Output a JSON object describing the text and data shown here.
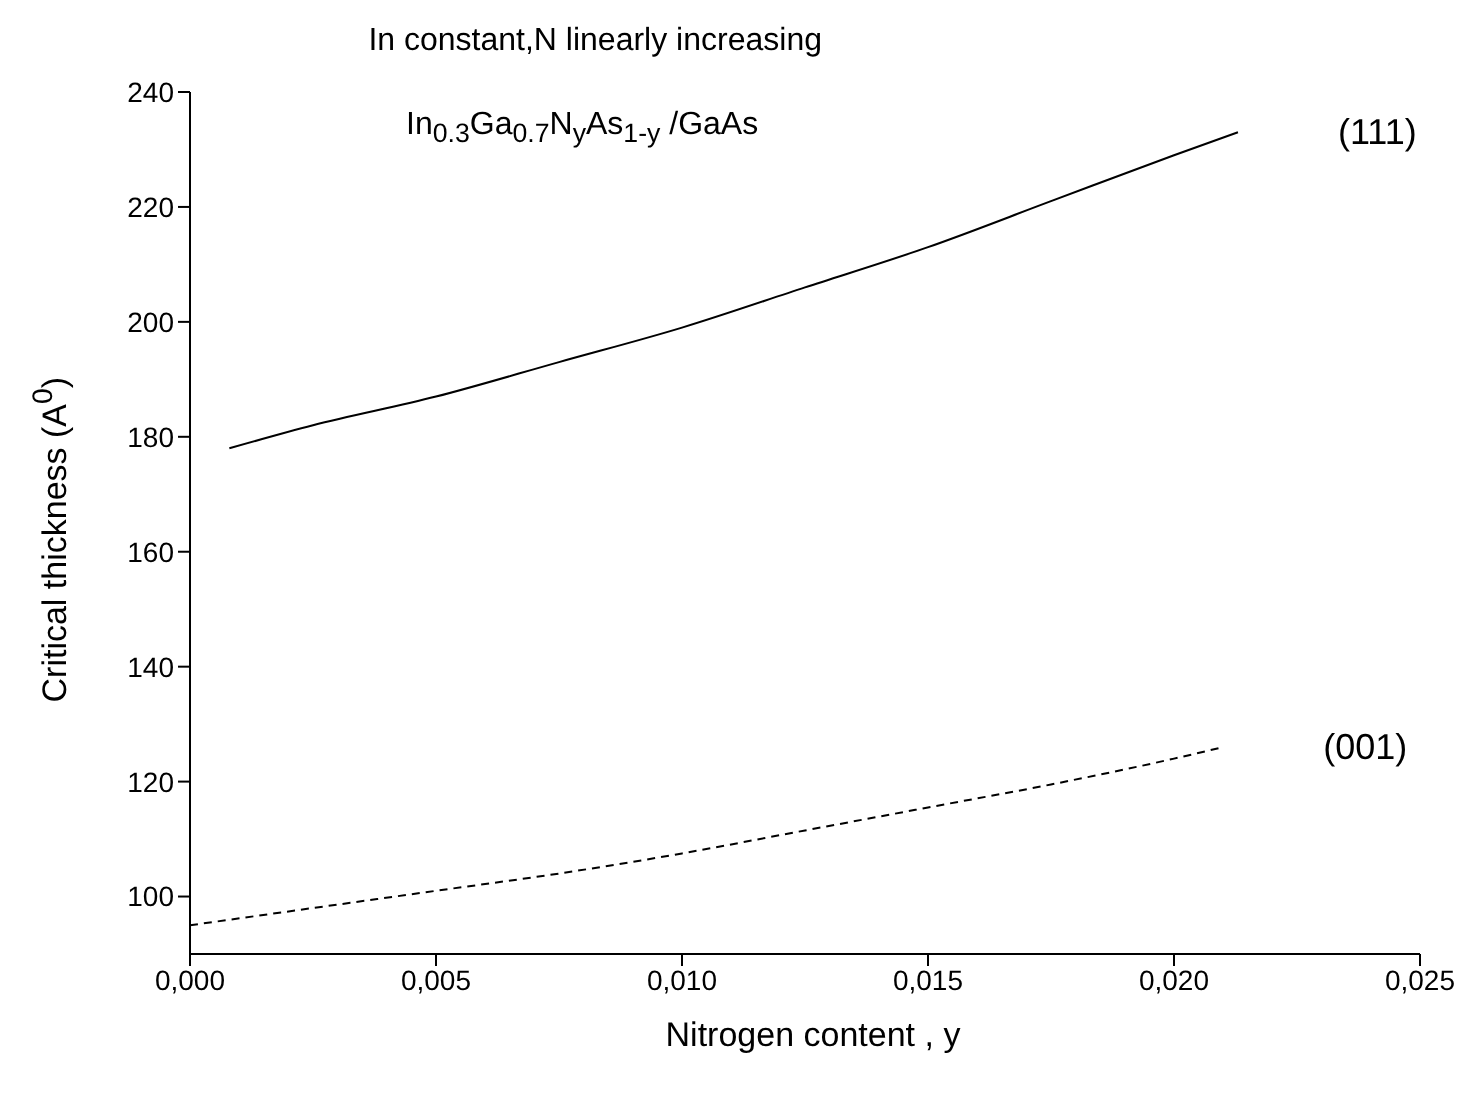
{
  "chart_data": {
    "type": "line",
    "title": "In constant,N linearly increasing",
    "subtitle": "In$_{0.3}$Ga$_{0.7}$N$_{y}$As$_{1-y}$ /GaAs",
    "xlabel": "Nitrogen content , y",
    "ylabel": "Critical thickness (A$^{0}$)",
    "series": [
      {
        "name": "(111)",
        "color": "#000000",
        "line_style": "solid",
        "x": [
          0.0008,
          0.0025,
          0.005,
          0.0075,
          0.01,
          0.0125,
          0.015,
          0.0175,
          0.02,
          0.0213
        ],
        "values": [
          178,
          182,
          187,
          193,
          199,
          206,
          213,
          221,
          229,
          233
        ]
      },
      {
        "name": "(001)",
        "color": "#000000",
        "line_style": "dashed",
        "x": [
          0,
          0.0025,
          0.005,
          0.0075,
          0.01,
          0.0125,
          0.015,
          0.0175,
          0.02,
          0.021
        ],
        "values": [
          95,
          98,
          101,
          104,
          107.5,
          111.5,
          115.5,
          119.5,
          124,
          126
        ]
      }
    ],
    "xlim": [
      0,
      0.025
    ],
    "xticks": [
      {
        "value": 0,
        "label": "0,000"
      },
      {
        "value": 0.005,
        "label": "0,005"
      },
      {
        "value": 0.01,
        "label": "0,010"
      },
      {
        "value": 0.015,
        "label": "0,015"
      },
      {
        "value": 0.02,
        "label": "0,020"
      },
      {
        "value": 0.025,
        "label": "0,025"
      }
    ],
    "ylim": [
      90,
      240
    ],
    "yticks": [
      100,
      120,
      140,
      160,
      180,
      200,
      220,
      240
    ],
    "grid": false,
    "legend": false,
    "marker": "none"
  }
}
